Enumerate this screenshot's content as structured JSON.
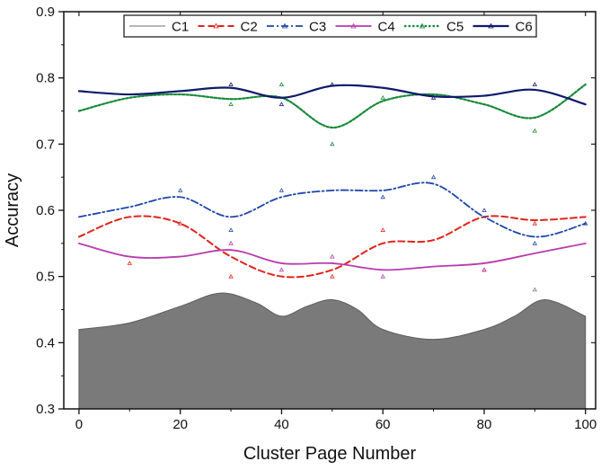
{
  "chart_data": {
    "type": "line",
    "xlabel": "Cluster Page Number",
    "ylabel": "Accuracy",
    "xlim": [
      -3,
      102
    ],
    "ylim": [
      0.3,
      0.9
    ],
    "x_ticks": [
      0,
      20,
      40,
      60,
      80,
      100
    ],
    "y_ticks": [
      0.3,
      0.4,
      0.5,
      0.6,
      0.7,
      0.8,
      0.9
    ],
    "x_tick_labels": [
      "0",
      "20",
      "40",
      "60",
      "80",
      "100"
    ],
    "y_tick_labels": [
      "0.3",
      "0.4",
      "0.5",
      "0.6",
      "0.7",
      "0.8",
      "0.9"
    ],
    "legend_position": "top",
    "series": [
      {
        "name": "C1",
        "style": "filled-area",
        "color": "#7a7a7a",
        "x": [
          0,
          10,
          20,
          28,
          35,
          40,
          45,
          50,
          55,
          60,
          70,
          80,
          86,
          92,
          100
        ],
        "y": [
          0.42,
          0.43,
          0.455,
          0.475,
          0.46,
          0.44,
          0.455,
          0.465,
          0.45,
          0.42,
          0.405,
          0.42,
          0.44,
          0.465,
          0.44
        ]
      },
      {
        "name": "C2",
        "style": "dashed",
        "color": "#e0241b",
        "x": [
          0,
          10,
          20,
          30,
          40,
          50,
          60,
          70,
          80,
          90,
          100
        ],
        "y": [
          0.56,
          0.59,
          0.58,
          0.53,
          0.5,
          0.51,
          0.55,
          0.555,
          0.59,
          0.585,
          0.59
        ]
      },
      {
        "name": "C3",
        "style": "dash-dot",
        "color": "#1f46a8",
        "x": [
          0,
          10,
          20,
          30,
          40,
          50,
          60,
          70,
          80,
          90,
          100
        ],
        "y": [
          0.59,
          0.605,
          0.62,
          0.59,
          0.62,
          0.63,
          0.63,
          0.64,
          0.59,
          0.56,
          0.58
        ]
      },
      {
        "name": "C4",
        "style": "solid",
        "color": "#b83cae",
        "x": [
          0,
          10,
          20,
          30,
          40,
          50,
          60,
          70,
          80,
          90,
          100
        ],
        "y": [
          0.55,
          0.53,
          0.53,
          0.54,
          0.52,
          0.52,
          0.51,
          0.515,
          0.52,
          0.535,
          0.55
        ]
      },
      {
        "name": "C5",
        "style": "dotted",
        "color": "#178a3a",
        "x": [
          0,
          10,
          20,
          30,
          40,
          50,
          60,
          70,
          80,
          90,
          100
        ],
        "y": [
          0.75,
          0.77,
          0.775,
          0.768,
          0.77,
          0.725,
          0.765,
          0.775,
          0.76,
          0.74,
          0.79
        ]
      },
      {
        "name": "C6",
        "style": "solid-thick",
        "color": "#101a6b",
        "x": [
          0,
          10,
          20,
          30,
          40,
          50,
          60,
          70,
          80,
          90,
          100
        ],
        "y": [
          0.78,
          0.775,
          0.78,
          0.785,
          0.77,
          0.788,
          0.785,
          0.772,
          0.773,
          0.782,
          0.76
        ]
      }
    ],
    "scatter_markers": [
      {
        "name": "C1",
        "color": "#7a7a7a",
        "x": [
          90
        ],
        "y": [
          0.48
        ]
      },
      {
        "name": "C2",
        "color": "#e0241b",
        "x": [
          10,
          20,
          30,
          50,
          60,
          80,
          90
        ],
        "y": [
          0.52,
          0.58,
          0.5,
          0.5,
          0.57,
          0.51,
          0.58
        ]
      },
      {
        "name": "C3",
        "color": "#1f46a8",
        "x": [
          20,
          30,
          40,
          60,
          70,
          80,
          90,
          100
        ],
        "y": [
          0.63,
          0.57,
          0.63,
          0.62,
          0.65,
          0.6,
          0.55,
          0.58
        ]
      },
      {
        "name": "C4",
        "color": "#b83cae",
        "x": [
          30,
          40,
          50,
          60,
          80
        ],
        "y": [
          0.55,
          0.51,
          0.53,
          0.5,
          0.51
        ]
      },
      {
        "name": "C5",
        "color": "#178a3a",
        "x": [
          30,
          40,
          50,
          60,
          90
        ],
        "y": [
          0.76,
          0.79,
          0.7,
          0.77,
          0.72
        ]
      },
      {
        "name": "C6",
        "color": "#101a6b",
        "x": [
          30,
          40,
          50,
          70,
          90
        ],
        "y": [
          0.79,
          0.76,
          0.79,
          0.77,
          0.79
        ]
      }
    ]
  }
}
